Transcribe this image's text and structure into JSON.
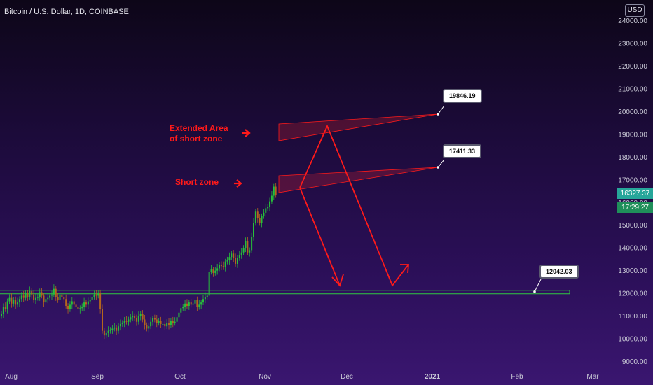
{
  "header": {
    "symbol": "Bitcoin / U.S. Dollar, 1D, COINBASE",
    "currency": "USD"
  },
  "annotations": {
    "extended_label_line1": "Extended Area",
    "extended_label_line2": "of short zone",
    "short_zone_label": "Short zone",
    "callout_high": "19846.19",
    "callout_mid": "17411.33",
    "callout_support": "12042.03"
  },
  "price_axis": {
    "current_price": "16327.37",
    "countdown": "17:29:27",
    "current_price_color": "#26a69a",
    "countdown_color": "#1f8f5a"
  },
  "colors": {
    "up_candle": "#26c23a",
    "down_candle": "#b5651d",
    "support_line": "#2ecc40",
    "annotation": "#ff1a1a"
  },
  "chart_data": {
    "type": "candlestick",
    "title": "Bitcoin / U.S. Dollar, 1D, COINBASE",
    "ylim": [
      9000,
      24000
    ],
    "yticks": [
      "24000.00",
      "23000.00",
      "22000.00",
      "21000.00",
      "20000.00",
      "19000.00",
      "18000.00",
      "17000.00",
      "16000.00",
      "15000.00",
      "14000.00",
      "13000.00",
      "12000.00",
      "11000.00",
      "10000.00",
      "9000.00"
    ],
    "xticks": [
      "Aug",
      "Sep",
      "Oct",
      "Nov",
      "Dec",
      "2021",
      "Feb",
      "Mar"
    ],
    "support_level": 12042.03,
    "short_zone_target": 17411.33,
    "extended_zone_target": 19846.19,
    "last_price": 16327.37,
    "closes": [
      11100,
      11400,
      11300,
      11650,
      11800,
      11550,
      11700,
      11500,
      11600,
      11750,
      11900,
      11800,
      12000,
      11850,
      12100,
      11950,
      11700,
      11800,
      11850,
      12050,
      11900,
      11600,
      11750,
      11800,
      11900,
      11950,
      12200,
      11850,
      11700,
      11950,
      11850,
      11750,
      11450,
      11300,
      11500,
      11650,
      11500,
      11400,
      11300,
      11350,
      11400,
      11600,
      11500,
      11650,
      11700,
      11850,
      11950,
      11900,
      12000,
      11300,
      10350,
      10150,
      10250,
      10350,
      10400,
      10450,
      10500,
      10350,
      10550,
      10650,
      10700,
      10800,
      10750,
      10850,
      10950,
      11000,
      10900,
      10750,
      11000,
      11100,
      10850,
      10600,
      10450,
      10550,
      10750,
      10900,
      10850,
      10700,
      10800,
      10650,
      10650,
      10550,
      10700,
      10600,
      10800,
      10700,
      10750,
      10950,
      11150,
      11350,
      11400,
      11550,
      11450,
      11600,
      11500,
      11550,
      11700,
      11400,
      11500,
      11600,
      11750,
      11850,
      11900,
      12950,
      13050,
      12900,
      13000,
      13100,
      13250,
      13200,
      13150,
      13400,
      13450,
      13600,
      13750,
      13550,
      13300,
      13550,
      13700,
      13800,
      14000,
      14300,
      13800,
      13900,
      14500,
      15100,
      15600,
      15300,
      15100,
      15400,
      15550,
      15750,
      15800,
      16050,
      16300,
      16700,
      16327
    ]
  }
}
